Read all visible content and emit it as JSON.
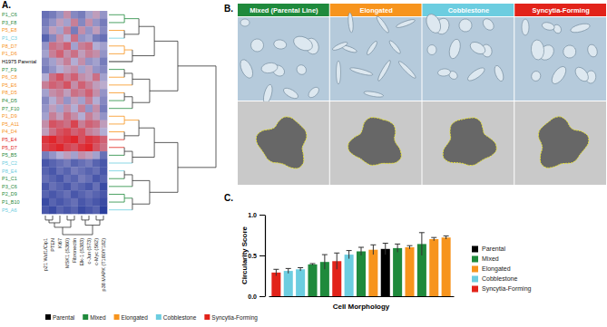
{
  "chart_data": [
    {
      "type": "heatmap",
      "title": "A.",
      "legend": "bottom",
      "series": [
        {
          "name": "Parental",
          "color": "#000000"
        },
        {
          "name": "Mixed",
          "color": "#1f8a3c"
        },
        {
          "name": "Elongated",
          "color": "#f7941d"
        },
        {
          "name": "Cobblestone",
          "color": "#6ccde0"
        },
        {
          "name": "Syncytia-Forming",
          "color": "#e2231a"
        }
      ],
      "categories": [
        "p21 Waf1/Cip1",
        "PTEN",
        "Ki67",
        "MSK1 (S360)",
        "Fibronectin",
        "Elk-1 (S383)",
        "c-Jun (S73)",
        "c-Myc (S62)",
        "p38 MAPK (T180/Y182)"
      ],
      "rows": [
        {
          "label": "P1_C6",
          "group": "Mixed"
        },
        {
          "label": "P3_F8",
          "group": "Mixed"
        },
        {
          "label": "P5_E8",
          "group": "Elongated"
        },
        {
          "label": "P1_C3",
          "group": "Cobblestone"
        },
        {
          "label": "P8_D7",
          "group": "Elongated"
        },
        {
          "label": "P1_D6",
          "group": "Elongated"
        },
        {
          "label": "H1975 Parental",
          "group": "Parental"
        },
        {
          "label": "P7_F9",
          "group": "Mixed"
        },
        {
          "label": "P6_C8",
          "group": "Elongated"
        },
        {
          "label": "P5_E6",
          "group": "Elongated"
        },
        {
          "label": "P8_D5",
          "group": "Elongated"
        },
        {
          "label": "P4_D5",
          "group": "Mixed"
        },
        {
          "label": "P7_F10",
          "group": "Mixed"
        },
        {
          "label": "P1_D9",
          "group": "Elongated"
        },
        {
          "label": "P5_A11",
          "group": "Elongated"
        },
        {
          "label": "P4_D4",
          "group": "Elongated"
        },
        {
          "label": "P5_E4",
          "group": "Syncytia-Forming"
        },
        {
          "label": "P5_D7",
          "group": "Syncytia-Forming"
        },
        {
          "label": "P5_B5",
          "group": "Mixed"
        },
        {
          "label": "P5_C2",
          "group": "Cobblestone"
        },
        {
          "label": "P8_E4",
          "group": "Cobblestone"
        },
        {
          "label": "P1_C1",
          "group": "Mixed"
        },
        {
          "label": "P3_C6",
          "group": "Mixed"
        },
        {
          "label": "P2_D9",
          "group": "Mixed"
        },
        {
          "label": "P1_B10",
          "group": "Mixed"
        },
        {
          "label": "P5_A6",
          "group": "Cobblestone"
        }
      ],
      "cells": [
        [
          -0.6,
          -0.5,
          -0.3,
          0.2,
          -0.4,
          -0.5,
          -0.2,
          0.1,
          -0.3
        ],
        [
          -0.5,
          -0.3,
          0.1,
          -0.2,
          0.3,
          -0.4,
          0.2,
          -0.3,
          -0.5
        ],
        [
          -0.4,
          0.1,
          -0.2,
          0.3,
          -0.5,
          0.2,
          -0.3,
          0.1,
          -0.4
        ],
        [
          -0.7,
          -0.4,
          0.2,
          -0.1,
          0.4,
          -0.3,
          -0.2,
          -0.5,
          -0.6
        ],
        [
          -0.3,
          0.4,
          0.3,
          0.5,
          -0.2,
          0.3,
          0.4,
          -0.1,
          -0.2
        ],
        [
          -0.2,
          0.3,
          0.5,
          0.2,
          0.4,
          0.1,
          0.3,
          0.2,
          -0.3
        ],
        [
          -0.4,
          -0.2,
          0.1,
          0.3,
          -0.1,
          0.2,
          -0.3,
          -0.2,
          -0.5
        ],
        [
          -0.5,
          -0.3,
          -0.1,
          0.1,
          0.2,
          -0.2,
          0.1,
          -0.3,
          -0.4
        ],
        [
          -0.1,
          0.4,
          0.6,
          0.3,
          0.5,
          0.2,
          0.1,
          0.4,
          -0.2
        ],
        [
          0.3,
          0.5,
          0.4,
          0.6,
          0.2,
          0.5,
          0.3,
          0.1,
          0.0
        ],
        [
          -0.2,
          0.2,
          0.3,
          0.1,
          0.4,
          0.3,
          0.5,
          0.2,
          -0.3
        ],
        [
          -0.4,
          -0.1,
          0.2,
          -0.3,
          0.1,
          -0.2,
          0.3,
          -0.1,
          -0.4
        ],
        [
          -0.3,
          0.1,
          -0.2,
          0.2,
          -0.1,
          0.3,
          -0.3,
          0.2,
          -0.5
        ],
        [
          -0.2,
          0.3,
          0.1,
          0.4,
          0.2,
          -0.1,
          0.3,
          0.1,
          -0.3
        ],
        [
          0.2,
          0.6,
          0.5,
          0.4,
          0.7,
          0.3,
          0.5,
          0.4,
          0.1
        ],
        [
          0.1,
          0.4,
          0.6,
          0.7,
          0.5,
          0.6,
          0.3,
          0.2,
          -0.1
        ],
        [
          0.8,
          0.9,
          0.7,
          0.8,
          0.9,
          0.6,
          0.8,
          0.7,
          0.5
        ],
        [
          0.7,
          0.8,
          0.9,
          0.7,
          0.6,
          0.8,
          0.9,
          0.6,
          0.4
        ],
        [
          -0.5,
          -0.3,
          -0.1,
          0.1,
          -0.2,
          0.2,
          0.1,
          -0.2,
          -0.6
        ],
        [
          -0.8,
          -0.7,
          -0.6,
          -0.5,
          -0.7,
          -0.6,
          -0.5,
          -0.7,
          -0.8
        ],
        [
          -0.7,
          -0.8,
          -0.6,
          -0.7,
          -0.5,
          -0.6,
          -0.7,
          -0.6,
          -0.8
        ],
        [
          -0.6,
          -0.7,
          -0.8,
          -0.6,
          -0.7,
          -0.5,
          -0.6,
          -0.8,
          -0.7
        ],
        [
          -0.8,
          -0.6,
          -0.7,
          -0.8,
          -0.6,
          -0.7,
          -0.8,
          -0.6,
          -0.9
        ],
        [
          -0.7,
          -0.8,
          -0.7,
          -0.6,
          -0.8,
          -0.7,
          -0.6,
          -0.7,
          -0.8
        ],
        [
          -0.9,
          -0.7,
          -0.8,
          -0.7,
          -0.6,
          -0.8,
          -0.7,
          -0.8,
          -0.9
        ],
        [
          -0.8,
          -0.9,
          -0.7,
          -0.8,
          -0.7,
          -0.9,
          -0.8,
          -0.7,
          -1.0
        ]
      ]
    },
    {
      "type": "bar",
      "title": "C.",
      "xlabel": "Cell Morphology",
      "ylabel": "Circularity Score",
      "legend": "right",
      "categories": [
        null,
        null,
        null,
        null,
        null,
        null,
        null,
        null,
        null,
        null,
        null,
        null,
        null,
        null,
        null
      ],
      "ylim": [
        0,
        1
      ],
      "yticks": [
        {
          "value": 0,
          "label": "0.0"
        },
        {
          "value": 0.5,
          "label": "0.5"
        },
        {
          "value": 1,
          "label": "1.0"
        }
      ],
      "series": [
        {
          "name": "Parental",
          "color": "#000000",
          "values": [
            null,
            null,
            null,
            null,
            null,
            null,
            null,
            null,
            null,
            0.58,
            null,
            null,
            null,
            null,
            null
          ],
          "errors": [
            null,
            null,
            null,
            null,
            null,
            null,
            null,
            null,
            null,
            0.07,
            null,
            null,
            null,
            null,
            null
          ]
        },
        {
          "name": "Mixed",
          "color": "#1f8a3c",
          "values": [
            null,
            null,
            null,
            0.39,
            0.42,
            null,
            null,
            0.55,
            null,
            null,
            0.59,
            null,
            0.64,
            null,
            null
          ],
          "errors": [
            null,
            null,
            null,
            0.01,
            0.09,
            null,
            null,
            0.05,
            null,
            null,
            0.05,
            null,
            0.14,
            null,
            null
          ]
        },
        {
          "name": "Elongated",
          "color": "#f7941d",
          "values": [
            null,
            null,
            null,
            null,
            null,
            null,
            null,
            null,
            0.57,
            null,
            null,
            0.6,
            null,
            0.7,
            0.72
          ],
          "errors": [
            null,
            null,
            null,
            null,
            null,
            null,
            null,
            null,
            0.06,
            null,
            null,
            0.02,
            null,
            0.02,
            0.02
          ]
        },
        {
          "name": "Cobblestone",
          "color": "#6ccde0",
          "values": [
            null,
            0.31,
            0.33,
            null,
            null,
            null,
            0.51,
            null,
            null,
            null,
            null,
            null,
            null,
            null,
            null
          ],
          "errors": [
            null,
            0.03,
            0.02,
            null,
            null,
            null,
            0.05,
            null,
            null,
            null,
            null,
            null,
            null,
            null,
            null
          ]
        },
        {
          "name": "Syncytia-Forming",
          "color": "#e2231a",
          "values": [
            0.29,
            null,
            null,
            null,
            null,
            0.43,
            null,
            null,
            null,
            null,
            null,
            null,
            null,
            null,
            null
          ],
          "errors": [
            0.04,
            null,
            null,
            null,
            null,
            0.1,
            null,
            null,
            null,
            null,
            null,
            null,
            null,
            null,
            null
          ]
        }
      ]
    }
  ],
  "figure_b": {
    "label": "B.",
    "headers": [
      {
        "text": "Mixed (Parental Line)",
        "color": "#1f8a3c"
      },
      {
        "text": "Elongated",
        "color": "#f7941d"
      },
      {
        "text": "Cobblestone",
        "color": "#6ccde0"
      },
      {
        "text": "Syncytia-Forming",
        "color": "#e2231a"
      }
    ]
  }
}
